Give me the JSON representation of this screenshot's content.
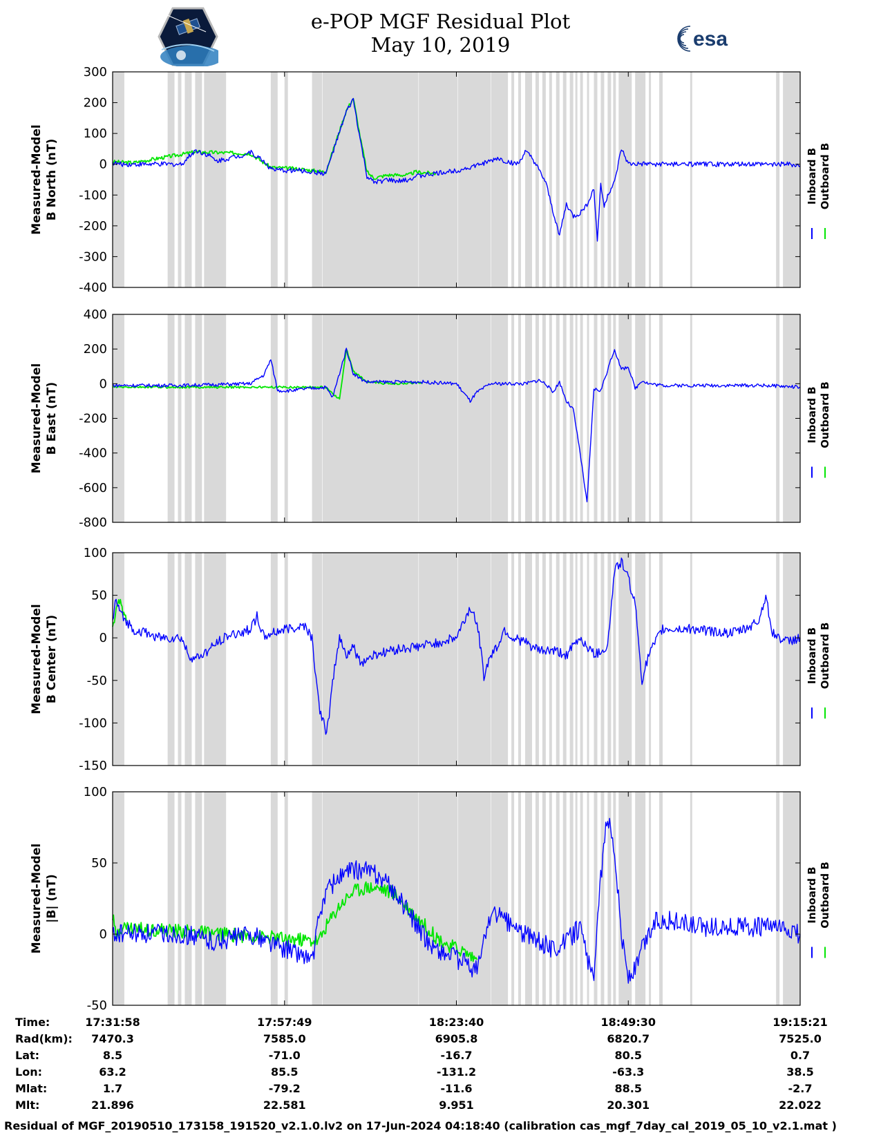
{
  "title_line1": "e-POP MGF Residual Plot",
  "title_line2": "May 10, 2019",
  "logos": {
    "left": "CASSIOPE",
    "right": "esa"
  },
  "colors": {
    "inboard": "#0000ff",
    "outboard": "#00e600",
    "shade": "#d9d9d9"
  },
  "chart_data": [
    {
      "type": "line",
      "ylabel": [
        "Measured-Model",
        "B North (nT)"
      ],
      "ylim": [
        -400,
        300
      ],
      "yticks": [
        300,
        200,
        100,
        0,
        -100,
        -200,
        -300,
        -400
      ],
      "legend": [
        "Inboard B",
        "Outboard B"
      ],
      "legend_placement": "right",
      "series": [
        {
          "name": "Inboard B",
          "color": "#0000ff",
          "x": [
            0,
            1,
            3,
            5,
            7,
            9,
            10,
            12,
            14,
            15,
            17,
            18,
            19,
            20,
            22,
            23,
            24,
            27,
            31,
            34,
            35,
            36,
            37,
            38,
            40,
            41,
            42,
            43,
            44,
            47,
            50,
            52,
            55,
            56,
            57,
            59,
            60,
            61,
            62,
            63,
            64,
            65,
            66,
            67,
            68,
            69,
            70,
            70.5,
            71,
            71.5,
            72,
            72.5,
            73,
            74,
            75,
            76,
            77,
            78,
            80,
            82,
            84,
            86,
            88,
            89,
            90,
            91,
            92,
            93,
            94,
            95,
            96,
            97,
            98,
            100
          ],
          "y": [
            5,
            0,
            0,
            0,
            0,
            0,
            0,
            45,
            30,
            10,
            20,
            25,
            30,
            40,
            10,
            -15,
            -20,
            -20,
            -30,
            170,
            210,
            80,
            -40,
            -60,
            -50,
            -55,
            -55,
            -50,
            -40,
            -30,
            -20,
            -10,
            10,
            20,
            10,
            0,
            40,
            20,
            -20,
            -60,
            -150,
            -230,
            -130,
            -170,
            -160,
            -130,
            -80,
            -250,
            -60,
            -140,
            -100,
            -80,
            -60,
            50,
            0,
            0,
            0,
            0,
            0,
            0,
            0,
            0,
            0,
            0,
            0,
            0,
            0,
            0,
            0,
            0,
            0,
            0,
            0,
            -5
          ],
          "noise": 8
        },
        {
          "name": "Outboard B",
          "color": "#00e600",
          "x": [
            0,
            3,
            12,
            20,
            23,
            27,
            31,
            34,
            35,
            36,
            37,
            38,
            40,
            43,
            44,
            47
          ],
          "y": [
            8,
            5,
            40,
            35,
            -10,
            -15,
            -25,
            175,
            215,
            90,
            -25,
            -45,
            -35,
            -35,
            -25,
            -30
          ],
          "noise": 6
        }
      ]
    },
    {
      "type": "line",
      "ylabel": [
        "Measured-Model",
        "B East (nT)"
      ],
      "ylim": [
        -800,
        400
      ],
      "yticks": [
        400,
        200,
        0,
        -200,
        -400,
        -600,
        -800
      ],
      "legend": [
        "Inboard B",
        "Outboard B"
      ],
      "legend_placement": "right",
      "series": [
        {
          "name": "Inboard B",
          "color": "#0000ff",
          "x": [
            0,
            5,
            10,
            15,
            20,
            22,
            23,
            24,
            25,
            26,
            28,
            31,
            32,
            33,
            34,
            35,
            36,
            37,
            38,
            39,
            40,
            45,
            50,
            52,
            53,
            55,
            60,
            62,
            63,
            64,
            65,
            66,
            67,
            68,
            69,
            70,
            71,
            72,
            73,
            74,
            75,
            76,
            77,
            78,
            80,
            85,
            90,
            95,
            100
          ],
          "y": [
            -10,
            -10,
            -10,
            -5,
            0,
            50,
            140,
            -40,
            -40,
            -40,
            -30,
            -20,
            -80,
            60,
            200,
            60,
            30,
            10,
            10,
            10,
            10,
            10,
            0,
            -100,
            -50,
            0,
            0,
            20,
            0,
            -50,
            10,
            -100,
            -150,
            -400,
            -690,
            -30,
            -40,
            80,
            200,
            80,
            100,
            -30,
            20,
            0,
            -10,
            -10,
            -10,
            -10,
            -20
          ],
          "noise": 10
        },
        {
          "name": "Outboard B",
          "color": "#00e600",
          "x": [
            0,
            2,
            31,
            33,
            34,
            35,
            37,
            40,
            45
          ],
          "y": [
            -20,
            -20,
            -20,
            -90,
            200,
            70,
            10,
            0,
            5
          ],
          "noise": 6
        }
      ]
    },
    {
      "type": "line",
      "ylabel": [
        "Measured-Model",
        "B Center (nT)"
      ],
      "ylim": [
        -150,
        100
      ],
      "yticks": [
        100,
        50,
        0,
        -50,
        -100,
        -150
      ],
      "legend": [
        "Inboard B",
        "Outboard B"
      ],
      "legend_placement": "right",
      "series": [
        {
          "name": "Inboard B",
          "color": "#0000ff",
          "x": [
            0,
            0.5,
            1,
            3,
            5,
            7,
            10,
            11,
            12,
            14,
            16,
            18,
            20,
            21,
            22,
            23,
            25,
            28,
            29,
            30,
            31,
            31.5,
            32,
            33,
            34,
            35,
            36,
            38,
            40,
            45,
            50,
            52,
            53,
            54,
            55,
            56,
            57,
            58,
            60,
            62,
            64,
            66,
            68,
            70,
            71,
            72,
            73,
            74,
            75,
            76,
            77,
            78,
            80,
            85,
            90,
            92,
            93,
            94,
            95,
            96,
            98,
            100
          ],
          "y": [
            20,
            45,
            30,
            10,
            5,
            0,
            0,
            -20,
            -25,
            -15,
            0,
            5,
            10,
            25,
            0,
            5,
            10,
            15,
            0,
            -80,
            -110,
            -95,
            -50,
            0,
            -20,
            -10,
            -30,
            -20,
            -15,
            -10,
            0,
            35,
            20,
            -45,
            -20,
            -10,
            10,
            0,
            -5,
            -15,
            -15,
            -20,
            0,
            -20,
            -15,
            -10,
            80,
            90,
            70,
            40,
            -50,
            -20,
            10,
            10,
            5,
            10,
            15,
            20,
            50,
            5,
            -5,
            0
          ],
          "noise": 6
        },
        {
          "name": "Outboard B",
          "color": "#00e600",
          "x": [
            0,
            0.5,
            1,
            1.5,
            2
          ],
          "y": [
            15,
            30,
            45,
            30,
            20
          ],
          "noise": 5
        }
      ]
    },
    {
      "type": "line",
      "ylabel": [
        "Measured-Model",
        "|B| (nT)"
      ],
      "ylim": [
        -50,
        100
      ],
      "yticks": [
        100,
        50,
        0,
        -50
      ],
      "legend": [
        "Inboard B",
        "Outboard B"
      ],
      "legend_placement": "right",
      "series": [
        {
          "name": "Inboard B",
          "color": "#0000ff",
          "x": [
            0,
            5,
            10,
            15,
            20,
            25,
            28,
            29,
            30,
            31,
            33,
            35,
            37,
            39,
            41,
            43,
            45,
            47,
            49,
            51,
            53,
            54,
            55,
            57,
            60,
            64,
            66,
            68,
            70,
            71,
            72,
            73,
            74,
            75,
            76,
            77,
            79,
            81,
            85,
            90,
            95,
            100
          ],
          "y": [
            0,
            0,
            0,
            -5,
            0,
            -10,
            -15,
            -20,
            10,
            30,
            40,
            45,
            45,
            40,
            30,
            15,
            0,
            -10,
            -15,
            -20,
            -25,
            -5,
            15,
            10,
            0,
            -10,
            -5,
            5,
            -35,
            40,
            85,
            60,
            0,
            -30,
            -25,
            -10,
            10,
            10,
            5,
            5,
            5,
            0
          ],
          "noise": 7
        },
        {
          "name": "Outboard B",
          "color": "#00e600",
          "x": [
            0,
            0.5,
            1,
            30,
            31,
            33,
            35,
            37,
            39,
            41,
            43,
            45,
            47,
            49,
            51,
            53
          ],
          "y": [
            12,
            -2,
            5,
            -5,
            5,
            20,
            30,
            33,
            32,
            28,
            18,
            8,
            -2,
            -8,
            -12,
            -18
          ],
          "noise": 5
        }
      ]
    }
  ],
  "info_labels": [
    "Time:",
    "Rad(km):",
    "Lat:",
    "Lon:",
    "Mlat:",
    "Mlt:"
  ],
  "info_values": [
    [
      "17:31:58",
      "17:57:49",
      "18:23:40",
      "18:49:30",
      "19:15:21"
    ],
    [
      "7470.3",
      "7585.0",
      "6905.8",
      "6820.7",
      "7525.0"
    ],
    [
      "8.5",
      "-71.0",
      "-16.7",
      "80.5",
      "0.7"
    ],
    [
      "63.2",
      "85.5",
      "-131.2",
      "-63.3",
      "38.5"
    ],
    [
      "1.7",
      "-79.2",
      "-11.6",
      "88.5",
      "-2.7"
    ],
    [
      "21.896",
      "22.581",
      "9.951",
      "20.301",
      "22.022"
    ]
  ],
  "footer": "Residual of MGF_20190510_173158_191520_v2.1.0.lv2 on 17-Jun-2024 04:18:40 (calibration cas_mgf_7day_cal_2019_05_10_v2.1.mat )"
}
